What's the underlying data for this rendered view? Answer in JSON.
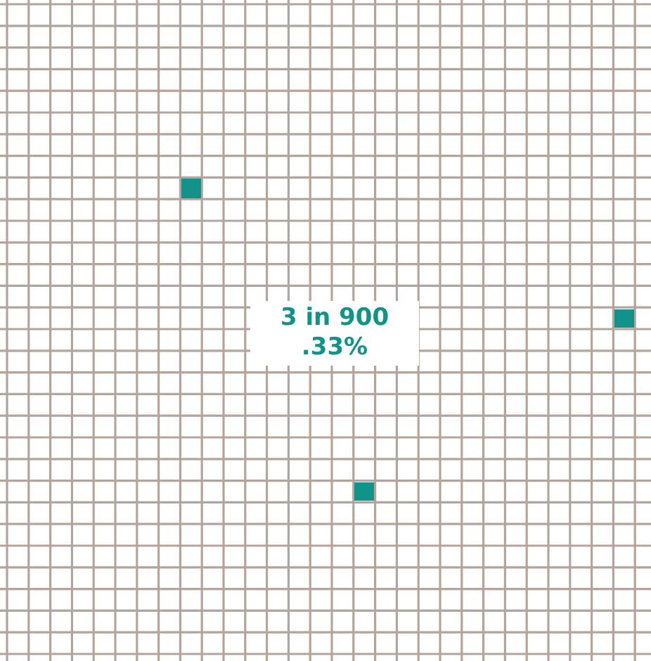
{
  "chart_data": {
    "type": "other",
    "values": [
      3
    ],
    "value_labels": [
      "3 in 900"
    ],
    "annotations": [
      ".33%"
    ]
  }
}
